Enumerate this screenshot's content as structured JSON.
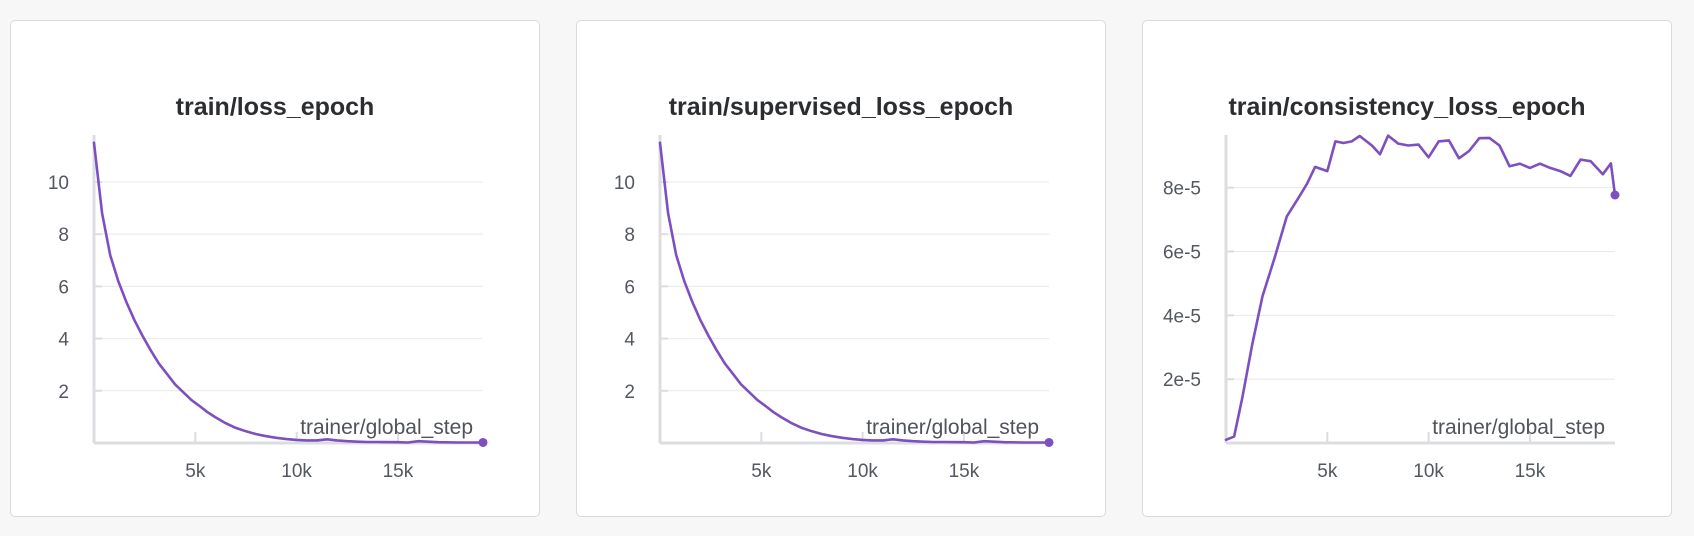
{
  "colors": {
    "series": "#7e4fbf",
    "grid": "#e7e8ea",
    "axis": "#dcdde0"
  },
  "chart_data": [
    {
      "type": "line",
      "title": "train/loss_epoch",
      "xlabel": "trainer/global_step",
      "x_ticks": [
        5000,
        10000,
        15000
      ],
      "x_tick_labels": [
        "5k",
        "10k",
        "15k"
      ],
      "y_ticks": [
        2,
        4,
        6,
        8,
        10
      ],
      "y_tick_labels": [
        "2",
        "4",
        "6",
        "8",
        "10"
      ],
      "xlim": [
        0,
        19200
      ],
      "ylim": [
        0,
        11.8
      ],
      "grid": true,
      "series": [
        {
          "x": [
            0,
            400,
            800,
            1200,
            1600,
            2000,
            2400,
            2800,
            3200,
            3600,
            4000,
            4400,
            4800,
            5200,
            5600,
            6000,
            6500,
            7000,
            7500,
            8000,
            8500,
            9000,
            9500,
            10000,
            10500,
            11000,
            11500,
            12000,
            12500,
            13000,
            13500,
            14000,
            15000,
            15500,
            16000,
            17000,
            18000,
            19200
          ],
          "y": [
            11.5,
            8.8,
            7.2,
            6.2,
            5.4,
            4.7,
            4.1,
            3.55,
            3.05,
            2.65,
            2.25,
            1.95,
            1.65,
            1.42,
            1.18,
            0.98,
            0.76,
            0.58,
            0.45,
            0.34,
            0.26,
            0.2,
            0.15,
            0.12,
            0.1,
            0.1,
            0.14,
            0.1,
            0.07,
            0.05,
            0.04,
            0.04,
            0.03,
            0.02,
            0.07,
            0.03,
            0.02,
            0.02
          ]
        }
      ]
    },
    {
      "type": "line",
      "title": "train/supervised_loss_epoch",
      "xlabel": "trainer/global_step",
      "x_ticks": [
        5000,
        10000,
        15000
      ],
      "x_tick_labels": [
        "5k",
        "10k",
        "15k"
      ],
      "y_ticks": [
        2,
        4,
        6,
        8,
        10
      ],
      "y_tick_labels": [
        "2",
        "4",
        "6",
        "8",
        "10"
      ],
      "xlim": [
        0,
        19200
      ],
      "ylim": [
        0,
        11.8
      ],
      "grid": true,
      "series": [
        {
          "x": [
            0,
            400,
            800,
            1200,
            1600,
            2000,
            2400,
            2800,
            3200,
            3600,
            4000,
            4400,
            4800,
            5200,
            5600,
            6000,
            6500,
            7000,
            7500,
            8000,
            8500,
            9000,
            9500,
            10000,
            10500,
            11000,
            11500,
            12000,
            12500,
            13000,
            13500,
            14000,
            15000,
            15500,
            16000,
            17000,
            18000,
            19200
          ],
          "y": [
            11.5,
            8.8,
            7.2,
            6.2,
            5.4,
            4.7,
            4.1,
            3.55,
            3.05,
            2.65,
            2.25,
            1.95,
            1.65,
            1.42,
            1.18,
            0.98,
            0.76,
            0.58,
            0.45,
            0.34,
            0.26,
            0.2,
            0.15,
            0.12,
            0.1,
            0.1,
            0.14,
            0.1,
            0.07,
            0.05,
            0.04,
            0.04,
            0.03,
            0.02,
            0.07,
            0.03,
            0.02,
            0.02
          ]
        }
      ]
    },
    {
      "type": "line",
      "title": "train/consistency_loss_epoch",
      "xlabel": "trainer/global_step",
      "x_ticks": [
        5000,
        10000,
        15000
      ],
      "x_tick_labels": [
        "5k",
        "10k",
        "15k"
      ],
      "y_ticks": [
        2e-05,
        4e-05,
        6e-05,
        8e-05
      ],
      "y_tick_labels": [
        "2e-5",
        "4e-5",
        "6e-5",
        "8e-5"
      ],
      "xlim": [
        0,
        19200
      ],
      "ylim": [
        0,
        9.65e-05
      ],
      "grid": true,
      "series": [
        {
          "x": [
            0,
            400,
            800,
            1300,
            1800,
            2400,
            3000,
            3600,
            4000,
            4400,
            5000,
            5400,
            5800,
            6200,
            6600,
            7200,
            7600,
            8000,
            8500,
            9000,
            9500,
            10000,
            10500,
            11000,
            11500,
            12000,
            12500,
            13000,
            13500,
            14000,
            14500,
            15000,
            15500,
            16000,
            16500,
            17000,
            17500,
            18000,
            18600,
            19000,
            19200
          ],
          "y": [
            1e-06,
            2e-06,
            1.4e-05,
            3.1e-05,
            4.6e-05,
            5.8e-05,
            7.1e-05,
            7.7e-05,
            8.12e-05,
            8.65e-05,
            8.52e-05,
            9.45e-05,
            9.4e-05,
            9.45e-05,
            9.62e-05,
            9.32e-05,
            9.05e-05,
            9.63e-05,
            9.38e-05,
            9.32e-05,
            9.35e-05,
            8.95e-05,
            9.45e-05,
            9.48e-05,
            8.92e-05,
            9.15e-05,
            9.55e-05,
            9.56e-05,
            9.32e-05,
            8.67e-05,
            8.75e-05,
            8.62e-05,
            8.75e-05,
            8.62e-05,
            8.52e-05,
            8.37e-05,
            8.88e-05,
            8.83e-05,
            8.42e-05,
            8.76e-05,
            7.77e-05
          ]
        }
      ]
    }
  ]
}
